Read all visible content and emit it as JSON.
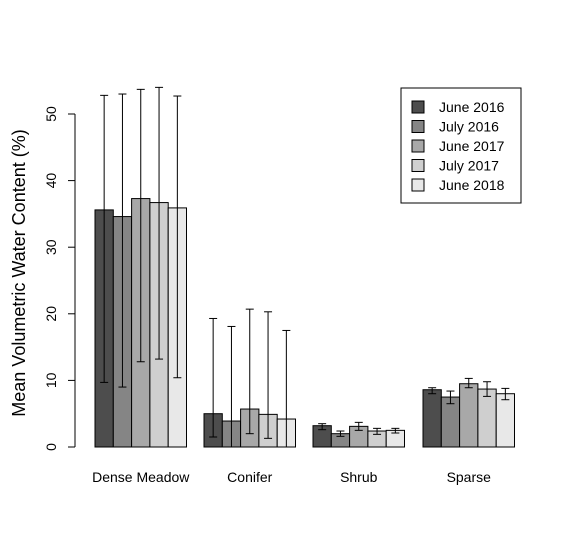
{
  "chart_data": {
    "type": "bar",
    "ylabel": "Mean Volumetric Water Content (%)",
    "xlabel": "",
    "title": "",
    "ylim": [
      0,
      55
    ],
    "yticks": [
      0,
      10,
      20,
      30,
      40,
      50
    ],
    "grid": false,
    "legend_position": "top-right",
    "categories": [
      "Dense Meadow",
      "Conifer",
      "Shrub",
      "Sparse"
    ],
    "series": [
      {
        "name": "June 2016",
        "color": "#4d4d4d",
        "values": [
          35.6,
          5.0,
          3.2,
          8.6
        ],
        "err_low": [
          9.7,
          1.5,
          2.6,
          8.0
        ],
        "err_high": [
          52.8,
          19.3,
          3.5,
          8.9
        ]
      },
      {
        "name": "July 2016",
        "color": "#858585",
        "values": [
          34.6,
          3.9,
          2.0,
          7.5
        ],
        "err_low": [
          9.0,
          0.0,
          1.6,
          6.5
        ],
        "err_high": [
          53.0,
          18.1,
          2.4,
          8.4
        ]
      },
      {
        "name": "June 2017",
        "color": "#a8a8a8",
        "values": [
          37.3,
          5.7,
          3.1,
          9.5
        ],
        "err_low": [
          12.8,
          2.0,
          2.5,
          8.9
        ],
        "err_high": [
          53.7,
          20.7,
          3.7,
          10.3
        ]
      },
      {
        "name": "July 2017",
        "color": "#cfcfcf",
        "values": [
          36.7,
          4.9,
          2.4,
          8.7
        ],
        "err_low": [
          13.2,
          1.3,
          1.9,
          7.6
        ],
        "err_high": [
          54.0,
          20.3,
          2.8,
          9.8
        ]
      },
      {
        "name": "June 2018",
        "color": "#e8e8e8",
        "values": [
          35.9,
          4.2,
          2.5,
          8.0
        ],
        "err_low": [
          10.4,
          0.0,
          2.1,
          7.1
        ],
        "err_high": [
          52.7,
          17.5,
          2.8,
          8.8
        ]
      }
    ]
  }
}
